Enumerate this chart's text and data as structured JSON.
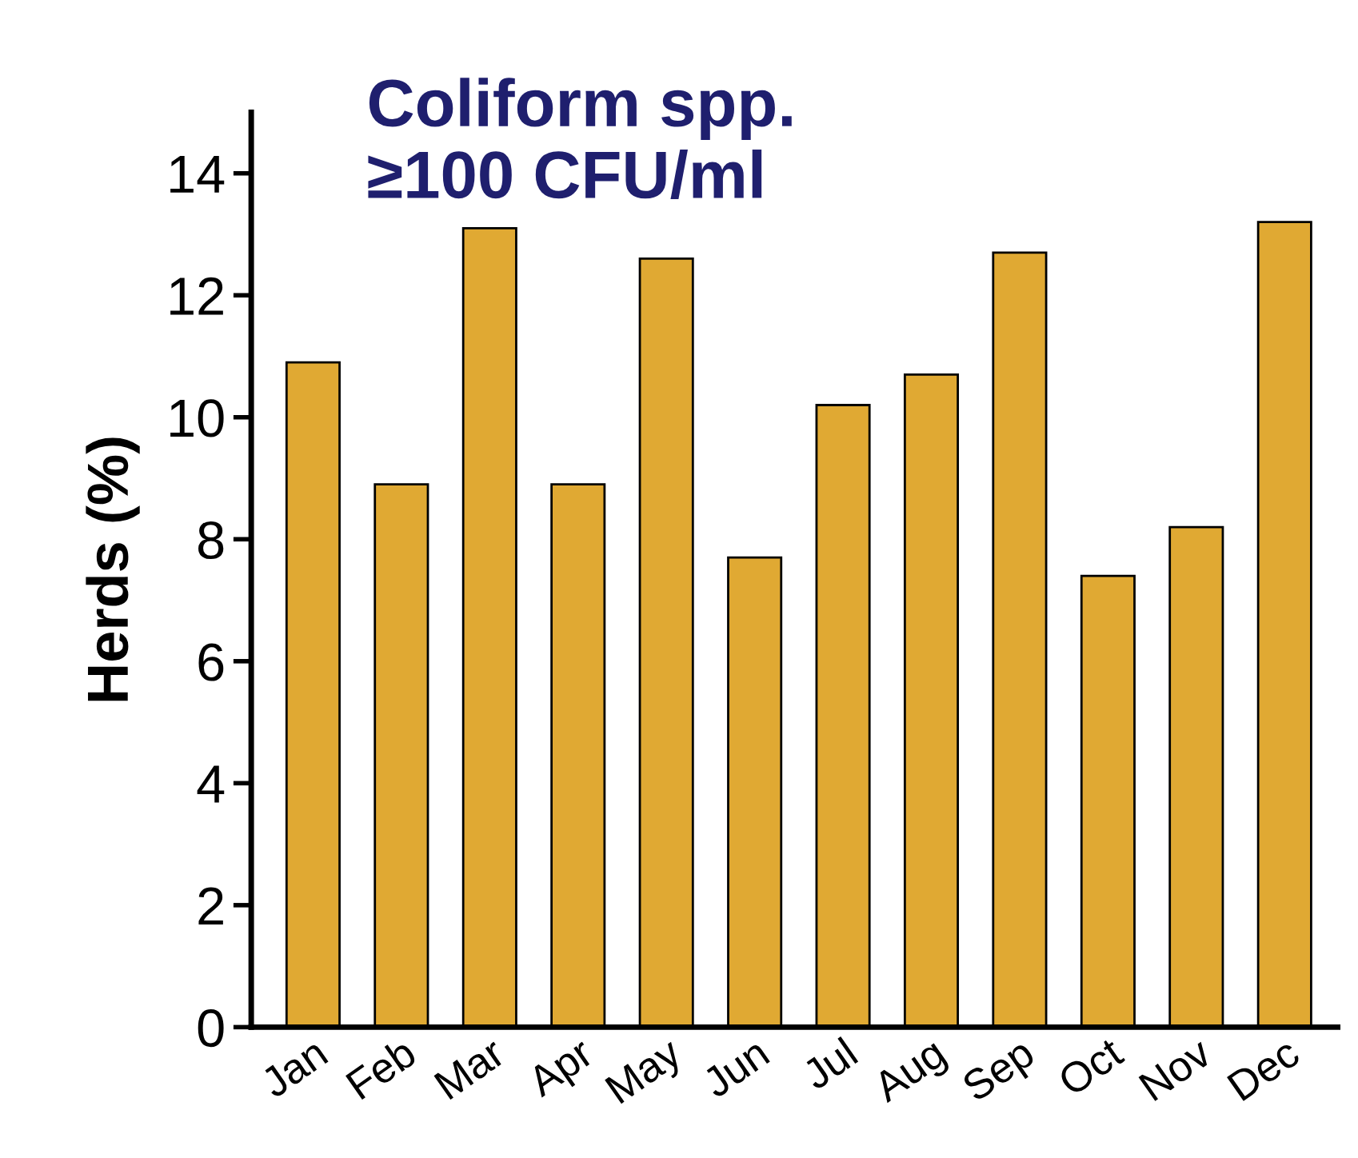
{
  "chart_data": {
    "type": "bar",
    "title": "Coliform spp.\n≥100 CFU/ml",
    "ylabel": "Herds (%)",
    "categories": [
      "Jan",
      "Feb",
      "Mar",
      "Apr",
      "May",
      "Jun",
      "Jul",
      "Aug",
      "Sep",
      "Oct",
      "Nov",
      "Dec"
    ],
    "values": [
      10.9,
      8.9,
      13.1,
      8.9,
      12.6,
      7.7,
      10.2,
      10.7,
      12.7,
      7.4,
      8.2,
      13.2
    ],
    "color": "#e0a933",
    "ylim": [
      0,
      15
    ],
    "yticks": [
      0,
      2,
      4,
      6,
      8,
      10,
      12,
      14
    ],
    "grid": false,
    "legend": false
  }
}
